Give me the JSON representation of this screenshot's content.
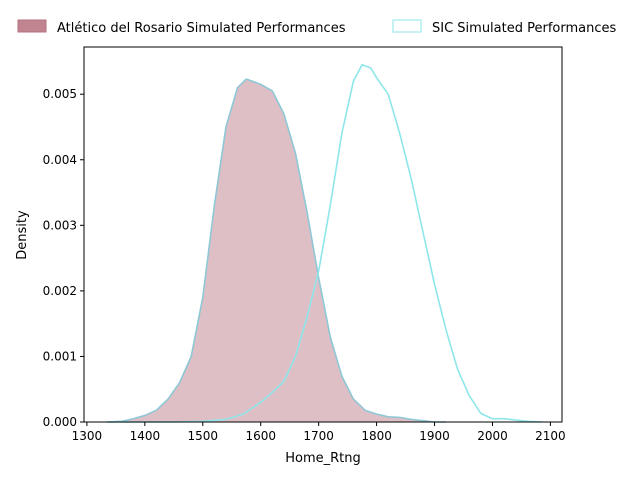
{
  "chart_data": {
    "type": "area",
    "title": "",
    "xlabel": "Home_Rtng",
    "ylabel": "Density",
    "xlim": [
      1295,
      2120
    ],
    "ylim": [
      0,
      0.00572
    ],
    "xticks": [
      1300,
      1400,
      1500,
      1600,
      1700,
      1800,
      1900,
      2000,
      2100
    ],
    "yticks": [
      0.0,
      0.001,
      0.002,
      0.003,
      0.004,
      0.005
    ],
    "ytick_labels": [
      "0.000",
      "0.001",
      "0.002",
      "0.003",
      "0.004",
      "0.005"
    ],
    "grid": false,
    "legend_placement": "top (outside plot)",
    "series": [
      {
        "name": "Atlético del Rosario Simulated Performances",
        "fill": "#b5707e",
        "fill_opacity": 0.45,
        "edge": "#8ec8d6",
        "x": [
          1335,
          1360,
          1380,
          1400,
          1420,
          1440,
          1460,
          1480,
          1500,
          1520,
          1540,
          1560,
          1575,
          1585,
          1600,
          1620,
          1640,
          1660,
          1680,
          1700,
          1720,
          1740,
          1760,
          1780,
          1800,
          1820,
          1840,
          1860,
          1880,
          1900,
          1920
        ],
        "y": [
          0.0,
          1e-05,
          5e-05,
          0.0001,
          0.00018,
          0.00035,
          0.0006,
          0.001,
          0.0019,
          0.0033,
          0.0045,
          0.0051,
          0.00523,
          0.0052,
          0.00515,
          0.00505,
          0.0047,
          0.0041,
          0.0032,
          0.0022,
          0.0013,
          0.0007,
          0.00035,
          0.00018,
          0.00012,
          8e-05,
          7e-05,
          4e-05,
          2e-05,
          0.0,
          0.0
        ]
      },
      {
        "name": "SIC Simulated Performances",
        "fill": "none",
        "edge": "#8ee6ea",
        "x": [
          1335,
          1450,
          1500,
          1540,
          1570,
          1600,
          1620,
          1640,
          1660,
          1680,
          1700,
          1720,
          1740,
          1760,
          1775,
          1790,
          1800,
          1820,
          1840,
          1860,
          1880,
          1900,
          1920,
          1940,
          1960,
          1980,
          2000,
          2020,
          2040,
          2060,
          2085
        ],
        "y": [
          0.0,
          0.0,
          1e-05,
          4e-05,
          0.00012,
          0.0003,
          0.00045,
          0.00062,
          0.001,
          0.0016,
          0.0023,
          0.0033,
          0.0044,
          0.0052,
          0.00545,
          0.0054,
          0.00525,
          0.005,
          0.0044,
          0.0037,
          0.0029,
          0.0021,
          0.0014,
          0.0008,
          0.0004,
          0.00013,
          5e-05,
          5e-05,
          3e-05,
          1e-05,
          0.0
        ]
      }
    ]
  }
}
